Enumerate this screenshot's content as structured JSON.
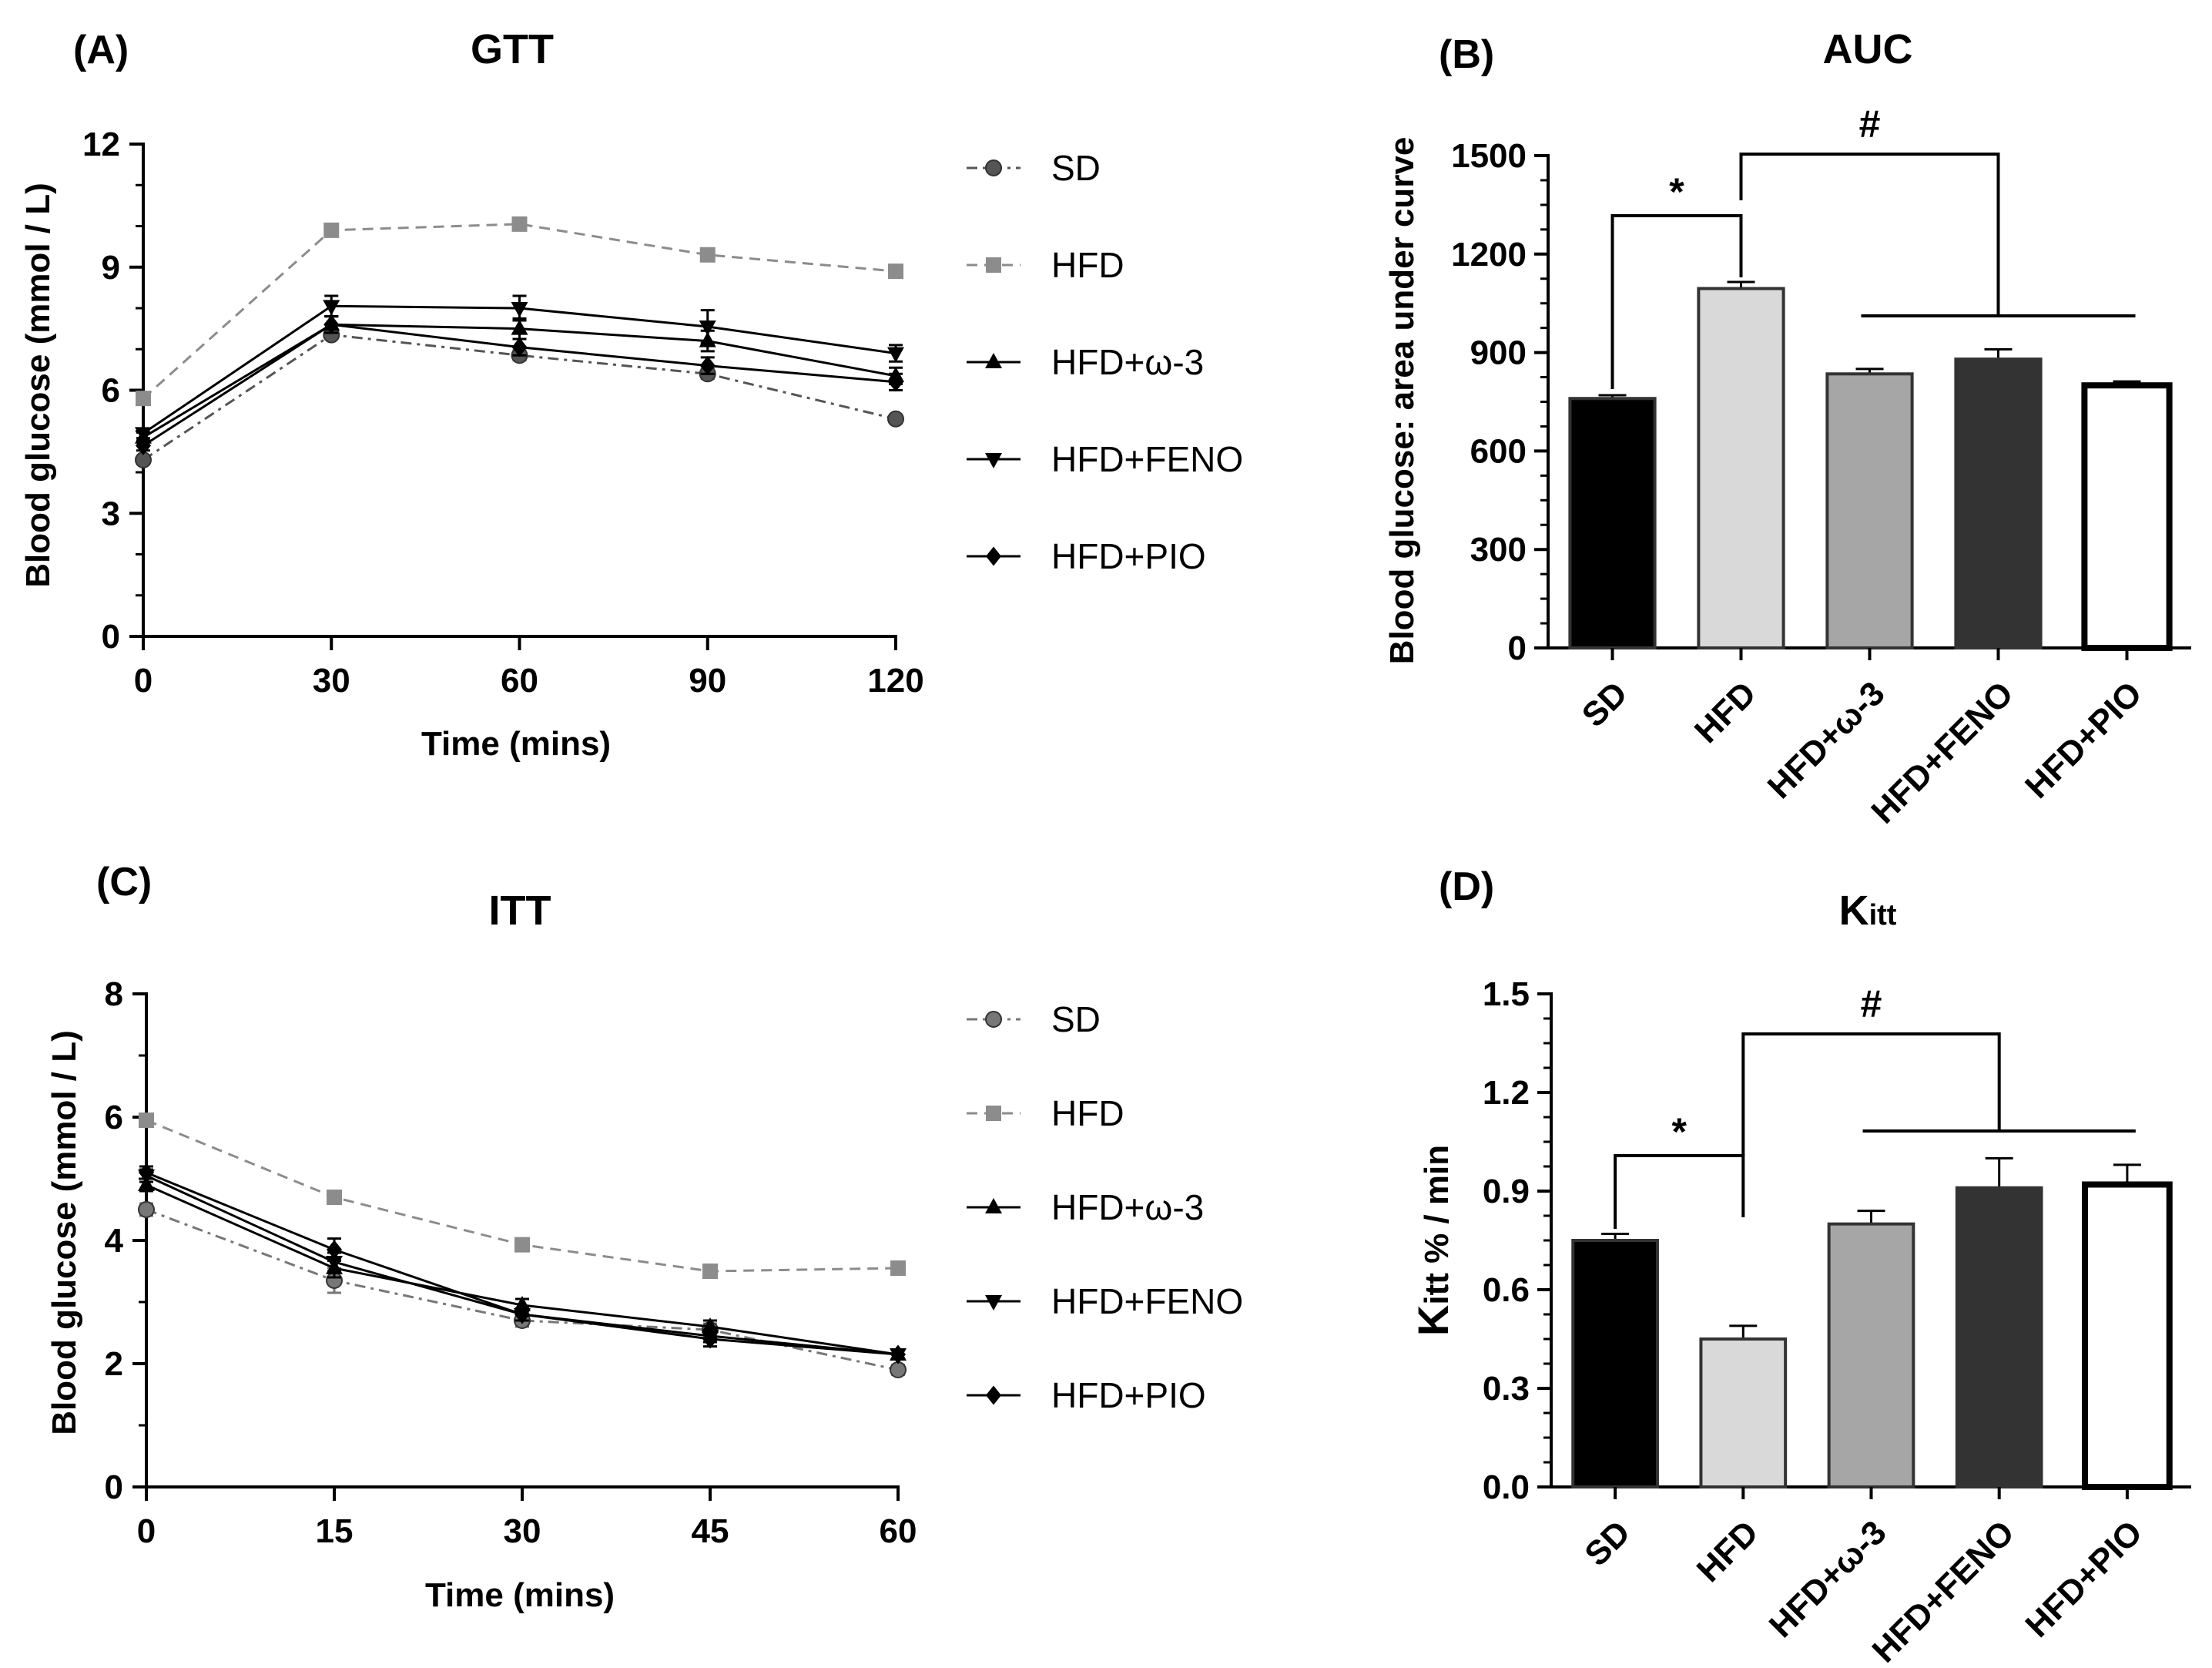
{
  "figure": {
    "panel_labels": [
      "(A)",
      "(B)",
      "(C)",
      "(D)"
    ]
  },
  "chart_data": [
    {
      "panel": "(A)",
      "type": "line",
      "title": "GTT",
      "xlabel": "Time (mins)",
      "ylabel": "Blood glucose (mmol / L)",
      "x": [
        0,
        30,
        60,
        90,
        120
      ],
      "xticks": [
        "0",
        "30",
        "60",
        "90",
        "120"
      ],
      "yticks": [
        "0",
        "3",
        "6",
        "9",
        "12"
      ],
      "xlim": [
        0,
        120
      ],
      "ylim": [
        0,
        12
      ],
      "series": [
        {
          "name": "SD",
          "values": [
            4.3,
            7.35,
            6.85,
            6.4,
            5.3
          ],
          "errors": [
            0.1,
            0.1,
            0.12,
            0.12,
            0.1
          ],
          "color": "#555555",
          "marker": "circle",
          "dash": "dashdot"
        },
        {
          "name": "HFD",
          "values": [
            5.8,
            9.9,
            10.05,
            9.3,
            8.9
          ],
          "errors": [
            0.1,
            0.1,
            0.1,
            0.1,
            0.1
          ],
          "color": "#8c8c8c",
          "marker": "square",
          "dash": "dashed"
        },
        {
          "name": "HFD+ω-3",
          "values": [
            4.85,
            7.6,
            7.5,
            7.2,
            6.35
          ],
          "errors": [
            0.12,
            0.2,
            0.25,
            0.25,
            0.2
          ],
          "color": "#000000",
          "marker": "triangle-up",
          "dash": "solid"
        },
        {
          "name": "HFD+FENO",
          "values": [
            4.95,
            8.05,
            8.0,
            7.55,
            6.9
          ],
          "errors": [
            0.12,
            0.25,
            0.3,
            0.4,
            0.2
          ],
          "color": "#000000",
          "marker": "triangle-down",
          "dash": "solid"
        },
        {
          "name": "HFD+PIO",
          "values": [
            4.65,
            7.6,
            7.05,
            6.6,
            6.2
          ],
          "errors": [
            0.12,
            0.2,
            0.2,
            0.2,
            0.2
          ],
          "color": "#000000",
          "marker": "diamond",
          "dash": "solid"
        }
      ]
    },
    {
      "panel": "(B)",
      "type": "bar",
      "title": "AUC",
      "xlabel": "",
      "ylabel": "Blood glucose: area under curve",
      "categories": [
        "SD",
        "HFD",
        "HFD+ω-3",
        "HFD+FENO",
        "HFD+PIO"
      ],
      "values": [
        760,
        1095,
        835,
        880,
        800
      ],
      "errors": [
        10,
        20,
        15,
        30,
        12
      ],
      "fills": [
        "#000000",
        "#d9d9d9",
        "#a6a6a6",
        "#333333",
        "#ffffff"
      ],
      "yticks": [
        "0",
        "300",
        "600",
        "900",
        "1200",
        "1500"
      ],
      "ylim": [
        0,
        1500
      ],
      "annotations": [
        "*",
        "#"
      ]
    },
    {
      "panel": "(C)",
      "type": "line",
      "title": "ITT",
      "xlabel": "Time (mins)",
      "ylabel": "Blood glucose (mmol / L)",
      "x": [
        0,
        15,
        30,
        45,
        60
      ],
      "xticks": [
        "0",
        "15",
        "30",
        "45",
        "60"
      ],
      "yticks": [
        "0",
        "2",
        "4",
        "6",
        "8"
      ],
      "xlim": [
        0,
        60
      ],
      "ylim": [
        0,
        8
      ],
      "series": [
        {
          "name": "SD",
          "values": [
            4.5,
            3.35,
            2.7,
            2.55,
            1.9
          ],
          "errors": [
            0.1,
            0.2,
            0.1,
            0.1,
            0.08
          ],
          "color": "#777777",
          "marker": "circle",
          "dash": "dashdot"
        },
        {
          "name": "HFD",
          "values": [
            5.95,
            4.7,
            3.93,
            3.5,
            3.55
          ],
          "errors": [
            0.1,
            0.1,
            0.08,
            0.08,
            0.08
          ],
          "color": "#8c8c8c",
          "marker": "square",
          "dash": "dashed"
        },
        {
          "name": "HFD+ω-3",
          "values": [
            4.9,
            3.55,
            2.95,
            2.6,
            2.15
          ],
          "errors": [
            0.1,
            0.15,
            0.1,
            0.1,
            0.08
          ],
          "color": "#000000",
          "marker": "triangle-up",
          "dash": "solid"
        },
        {
          "name": "HFD+FENO",
          "values": [
            5.05,
            3.65,
            2.8,
            2.45,
            2.15
          ],
          "errors": [
            0.1,
            0.15,
            0.1,
            0.1,
            0.08
          ],
          "color": "#000000",
          "marker": "triangle-down",
          "dash": "solid"
        },
        {
          "name": "HFD+PIO",
          "values": [
            5.1,
            3.85,
            2.8,
            2.4,
            2.15
          ],
          "errors": [
            0.1,
            0.18,
            0.1,
            0.12,
            0.08
          ],
          "color": "#000000",
          "marker": "diamond",
          "dash": "solid"
        }
      ]
    },
    {
      "panel": "(D)",
      "type": "bar",
      "title": "Kitt",
      "title_main": "K",
      "title_sub": "itt",
      "xlabel": "",
      "ylabel": "Kitt % / min",
      "ylabel_main": "K",
      "ylabel_rest": "itt % / min",
      "categories": [
        "SD",
        "HFD",
        "HFD+ω-3",
        "HFD+FENO",
        "HFD+PIO"
      ],
      "values": [
        0.75,
        0.45,
        0.8,
        0.91,
        0.92
      ],
      "errors": [
        0.02,
        0.04,
        0.04,
        0.09,
        0.06
      ],
      "fills": [
        "#000000",
        "#d9d9d9",
        "#a6a6a6",
        "#333333",
        "#ffffff"
      ],
      "yticks": [
        "0.0",
        "0.3",
        "0.6",
        "0.9",
        "1.2",
        "1.5"
      ],
      "ylim": [
        0,
        1.5
      ],
      "annotations": [
        "*",
        "#"
      ]
    }
  ]
}
